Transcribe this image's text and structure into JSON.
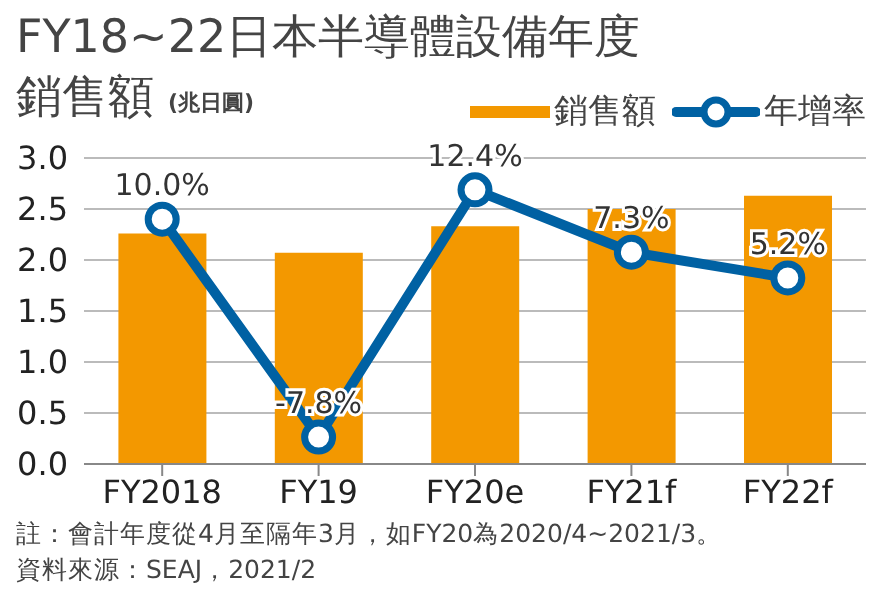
{
  "chart_data": {
    "type": "bar",
    "title": "FY18~22日本半導體設備年度銷售額",
    "ylabel": "(兆日圓)",
    "categories": [
      "FY2018",
      "FY19",
      "FY20e",
      "FY21f",
      "FY22f"
    ],
    "series": [
      {
        "name": "銷售額",
        "color": "#f39800",
        "values": [
          2.26,
          2.07,
          2.33,
          2.5,
          2.63
        ]
      },
      {
        "name": "年增率",
        "type": "line",
        "axis": "y2",
        "color": "#0061a3",
        "values": [
          10.0,
          -7.8,
          12.4,
          7.3,
          5.2
        ],
        "value_labels": [
          "10.0%",
          "-7.8%",
          "12.4%",
          "7.3%",
          "5.2%"
        ]
      }
    ],
    "ylim": [
      0,
      3
    ],
    "yticks": [
      {
        "value": 0,
        "label": "0.0"
      },
      0.5,
      {
        "value": 1,
        "label": "1.0"
      },
      1.5,
      {
        "value": 2,
        "label": "2.0"
      },
      2.5,
      {
        "value": 3,
        "label": "3.0"
      }
    ],
    "y2lim": [
      -10,
      15
    ],
    "grid": "y",
    "legend": "top right",
    "marker": "circle",
    "line_style": "solid",
    "annotations": [
      "註：會計年度從4月至隔年3月，如FY20為2020/4~2021/3。",
      "資料來源：SEAJ，2021/2"
    ]
  }
}
